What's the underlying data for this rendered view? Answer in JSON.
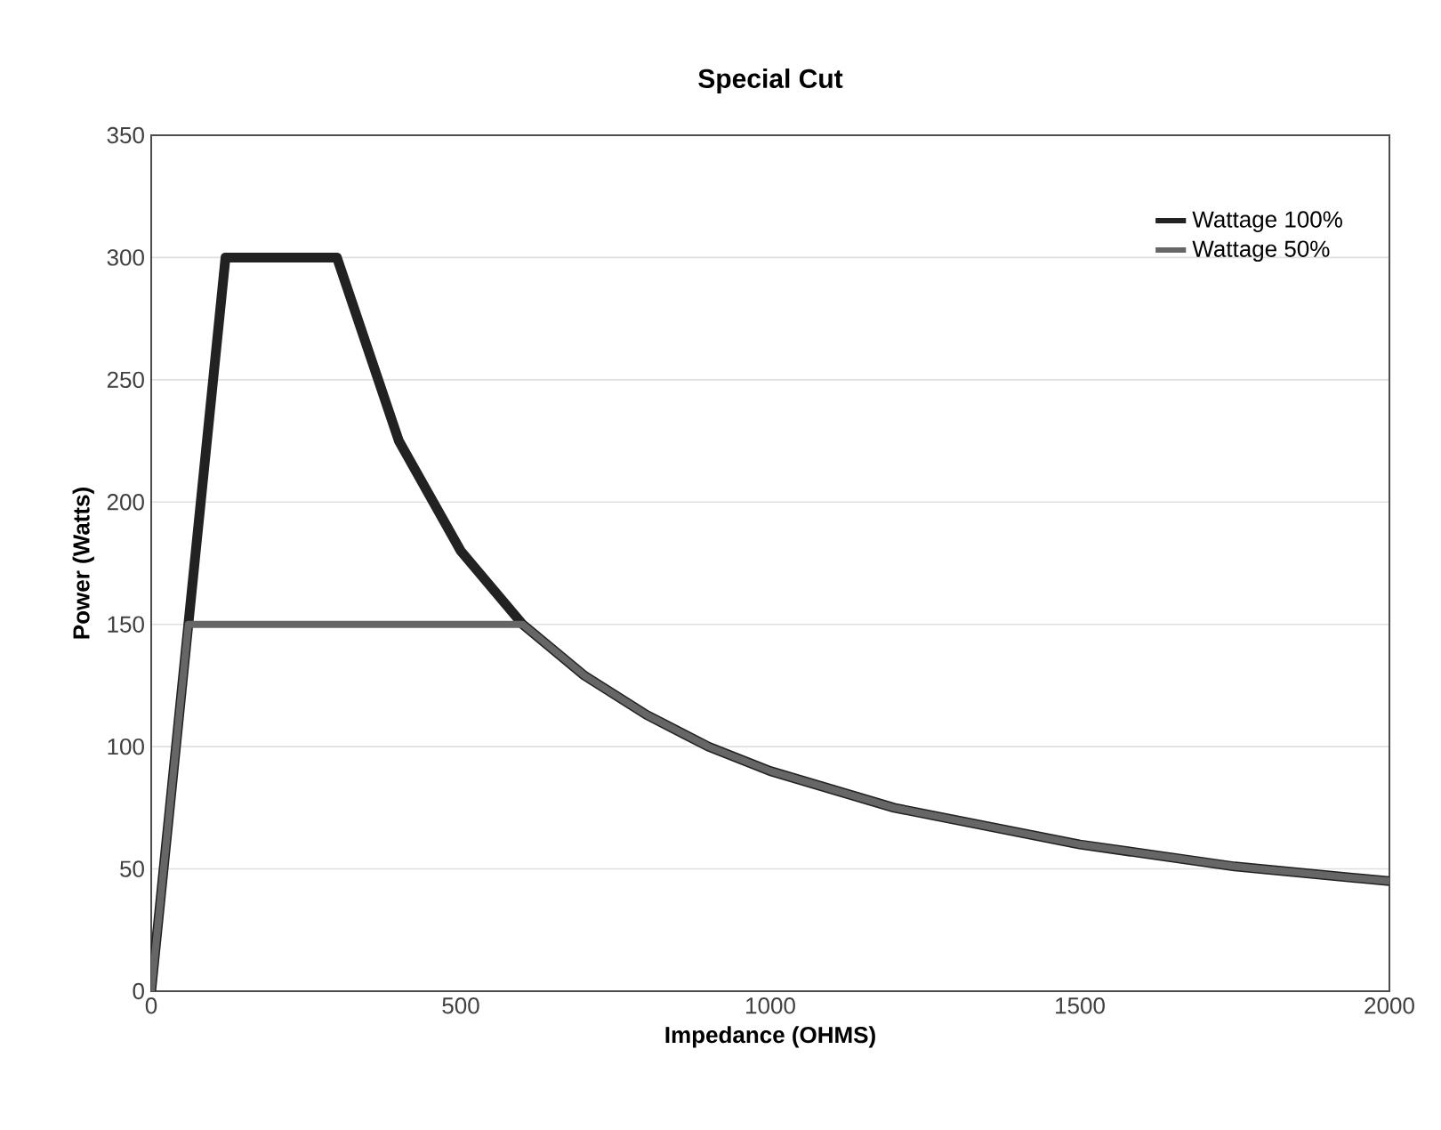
{
  "chart_data": {
    "type": "line",
    "title": "Special Cut",
    "xlabel": "Impedance (OHMS)",
    "ylabel": "Power (Watts)",
    "xlim": [
      0,
      2000
    ],
    "xticks": [
      0,
      500,
      1000,
      1500,
      2000
    ],
    "ylim": [
      0,
      350
    ],
    "yticks": [
      0,
      50,
      100,
      150,
      200,
      250,
      300,
      350
    ],
    "grid": "y",
    "legend": "top right",
    "series": [
      {
        "name": "Wattage 100%",
        "color": "#222222",
        "x": [
          0,
          120,
          300,
          400,
          500,
          600,
          700,
          800,
          900,
          1000,
          1200,
          1500,
          1750,
          2000
        ],
        "values": [
          0,
          300,
          300,
          225,
          180,
          150,
          129,
          113,
          100,
          90,
          75,
          60,
          51,
          45
        ]
      },
      {
        "name": "Wattage 50%",
        "color": "#666666",
        "x": [
          0,
          60,
          600,
          700,
          800,
          900,
          1000,
          1200,
          1500,
          1750,
          2000
        ],
        "values": [
          0,
          150,
          150,
          129,
          113,
          100,
          90,
          75,
          60,
          51,
          45
        ]
      }
    ]
  }
}
